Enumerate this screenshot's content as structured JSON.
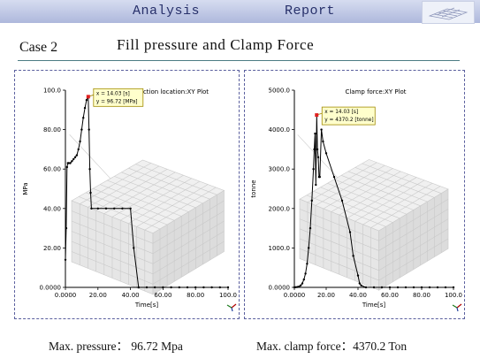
{
  "header": {
    "left": "Analysis",
    "right": "Report",
    "logo_icon": "mesh-thumbnail-icon"
  },
  "case_label": "Case 2",
  "title": "Fill pressure and Clamp Force",
  "chart_data": [
    {
      "type": "line",
      "title": "Pressure at injection location:XY Plot",
      "xlabel": "Time[s]",
      "ylabel": "MPa",
      "xlim": [
        0,
        100
      ],
      "ylim": [
        0,
        100
      ],
      "xticks": [
        0,
        20,
        40,
        60,
        80,
        100
      ],
      "xtick_labels": [
        "0.0000",
        "20.00",
        "40.00",
        "60.00",
        "80.00",
        "100.0"
      ],
      "yticks": [
        0,
        20,
        40,
        60,
        80,
        100
      ],
      "ytick_labels": [
        "0.0000",
        "20.00",
        "40.00",
        "60.00",
        "80.00",
        "100.0"
      ],
      "series": [
        {
          "x": [
            0,
            0.5,
            1,
            1.5,
            2,
            3,
            4,
            5,
            6,
            7,
            8,
            9,
            10,
            11,
            12,
            13,
            14.03,
            14.5,
            15,
            15.5,
            16,
            20,
            25,
            30,
            35,
            40,
            42,
            45,
            50,
            55,
            60,
            65,
            70,
            75,
            80,
            85,
            90,
            95,
            100
          ],
          "y": [
            14,
            30,
            61,
            63,
            63,
            63,
            64,
            65,
            66,
            67,
            70,
            74,
            80,
            86,
            91,
            95,
            96.72,
            80,
            60,
            48,
            40,
            40,
            40,
            40,
            40,
            40,
            20,
            0,
            0,
            0,
            0,
            0,
            0,
            0,
            0,
            0,
            0,
            0,
            0
          ]
        }
      ],
      "tooltip": {
        "x_text": "x = 14.03 [s]",
        "y_text": "y = 96.72 [MPa]",
        "x": 14.03,
        "y": 96.72
      }
    },
    {
      "type": "line",
      "title": "Clamp force:XY Plot",
      "xlabel": "Time[s]",
      "ylabel": "tonne",
      "xlim": [
        0,
        100
      ],
      "ylim": [
        0,
        5000
      ],
      "xticks": [
        0,
        20,
        40,
        60,
        80,
        100
      ],
      "xtick_labels": [
        "0.0000",
        "20.00",
        "40.00",
        "60.00",
        "80.00",
        "100.0"
      ],
      "yticks": [
        0,
        1000,
        2000,
        3000,
        4000,
        5000
      ],
      "ytick_labels": [
        "0.0000",
        "1000.0",
        "2000.0",
        "3000.0",
        "4000.0",
        "5000.0"
      ],
      "series": [
        {
          "x": [
            0,
            1,
            2,
            3,
            4,
            5,
            6,
            7,
            8,
            9,
            10,
            11,
            12,
            12.5,
            13,
            13.5,
            14.03,
            14.5,
            15,
            15.5,
            16,
            17,
            18,
            20,
            25,
            30,
            35,
            37,
            40,
            41,
            42,
            45,
            50,
            55,
            60,
            65,
            70,
            75,
            80,
            85,
            90,
            95,
            100
          ],
          "y": [
            0,
            5,
            10,
            20,
            50,
            100,
            200,
            350,
            600,
            1000,
            1500,
            2200,
            3000,
            3500,
            3900,
            2600,
            4370.2,
            3500,
            3300,
            2800,
            2800,
            4000,
            3700,
            3400,
            2800,
            2200,
            1400,
            800,
            300,
            100,
            50,
            0,
            0,
            0,
            0,
            0,
            0,
            0,
            0,
            0,
            0,
            0,
            0
          ]
        }
      ],
      "tooltip": {
        "x_text": "x = 14.03 [s]",
        "y_text": "y = 4370.2 [tonne]",
        "x": 14.03,
        "y": 4370.2
      }
    }
  ],
  "captions": {
    "left": "Max. pressure： 96.72 Mpa",
    "right": "Max. clamp force：4370.2 Ton"
  },
  "colors": {
    "plot_line": "#000000",
    "tooltip_bg": "#ffffcc",
    "tooltip_border": "#a08a00",
    "peak_marker": "#e02020",
    "panel_border": "#5a5f9e",
    "header_text": "#27306a"
  }
}
